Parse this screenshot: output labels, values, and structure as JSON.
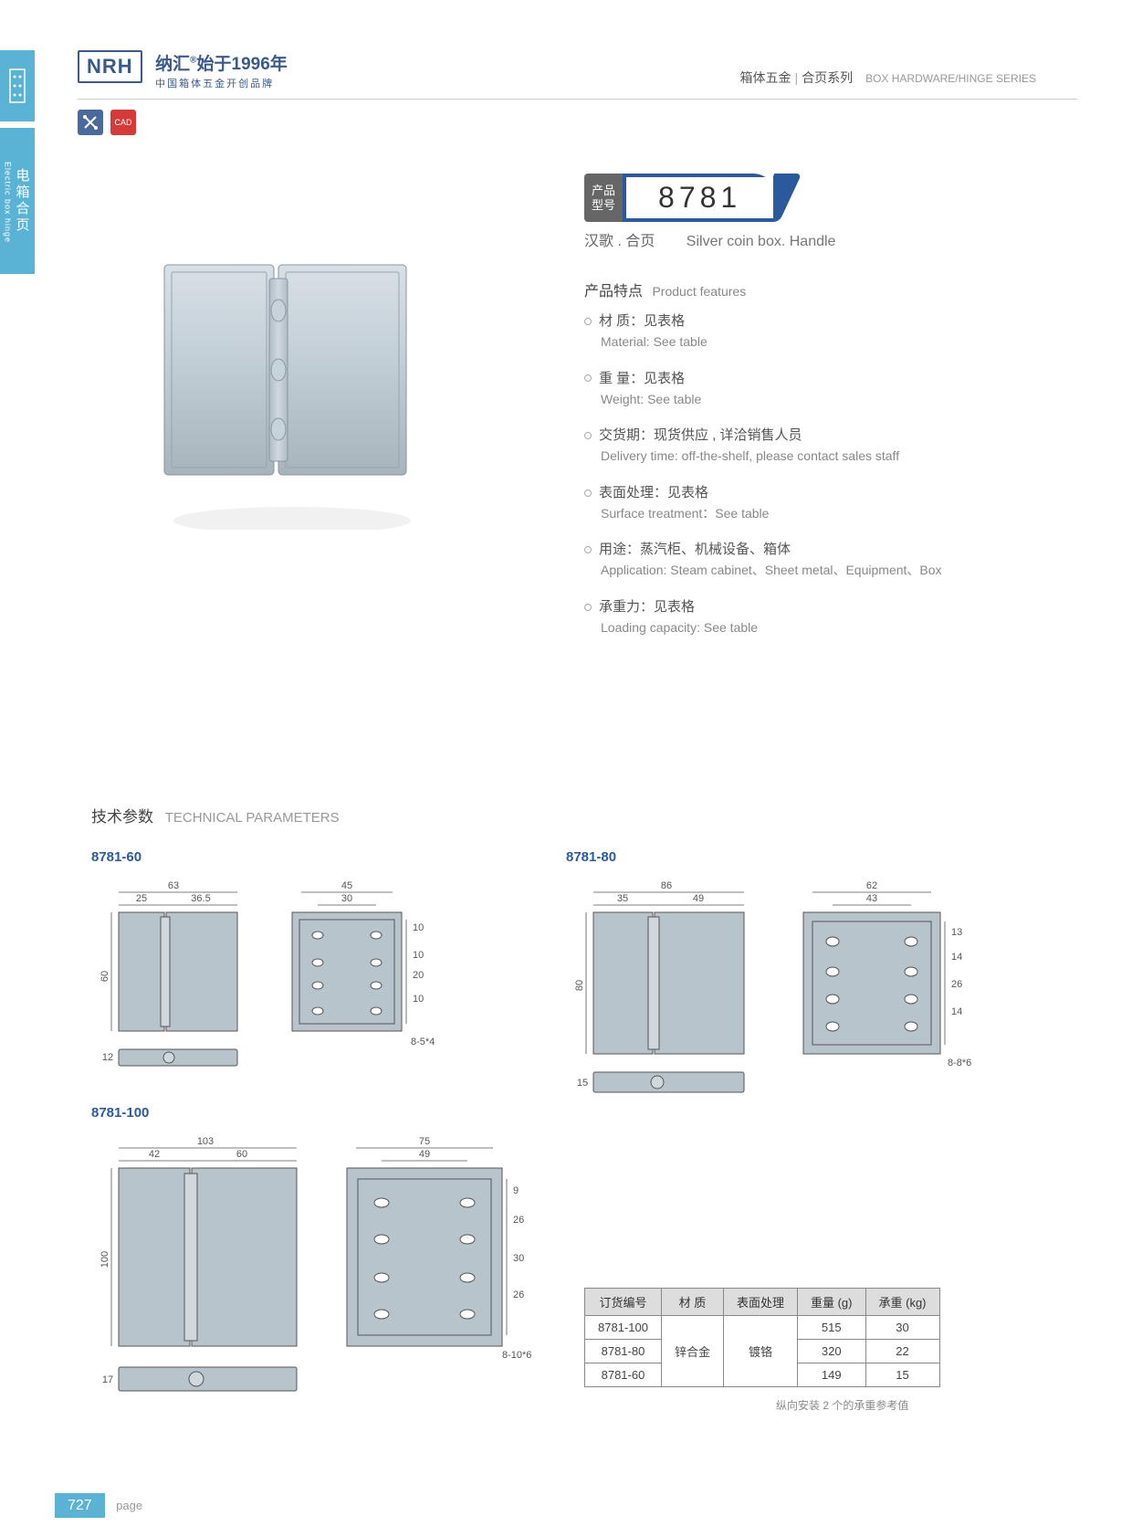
{
  "header": {
    "logo": "NRH",
    "brand_cn": "纳汇",
    "brand_reg": "®",
    "brand_year": "始于1996年",
    "brand_sub": "中国箱体五金开创品牌",
    "right_cn1": "箱体五金",
    "right_cn2": "合页系列",
    "right_en": "BOX HARDWARE/HINGE SERIES"
  },
  "side": {
    "cn": "电箱合页",
    "en": "Electric box hinge"
  },
  "icons": {
    "i1": "✕",
    "i2": "CAD"
  },
  "model": {
    "label1": "产品",
    "label2": "型号",
    "number": "8781"
  },
  "subtitle": {
    "cn": "汉歌 . 合页",
    "en": "Silver coin box. Handle"
  },
  "features": {
    "title_cn": "产品特点",
    "title_en": "Product features",
    "items": [
      {
        "cn": "材 质：见表格",
        "en": "Material: See table"
      },
      {
        "cn": "重 量：见表格",
        "en": "Weight: See table"
      },
      {
        "cn": "交货期：现货供应 , 详洽销售人员",
        "en": "Delivery time: off-the-shelf, please contact sales staff"
      },
      {
        "cn": "表面处理：见表格",
        "en": "Surface treatment：See table"
      },
      {
        "cn": "用途：蒸汽柜、机械设备、箱体",
        "en": "Application: Steam cabinet、Sheet metal、Equipment、Box"
      },
      {
        "cn": "承重力：见表格",
        "en": "Loading capacity: See table"
      }
    ]
  },
  "tech": {
    "title_cn": "技术参数",
    "title_en": "TECHNICAL PARAMETERS"
  },
  "variants": {
    "v1": {
      "label": "8781-60",
      "d": {
        "w1": "63",
        "w2": "25",
        "w3": "36.5",
        "h1": "60",
        "h2": "12",
        "bw": "45",
        "bw2": "30",
        "bs1": "10",
        "bs2": "20",
        "bs3": "10",
        "bs4": "10",
        "hole": "8-5*4"
      }
    },
    "v2": {
      "label": "8781-80",
      "d": {
        "w1": "86",
        "w2": "35",
        "w3": "49",
        "h1": "80",
        "h2": "15",
        "bw": "62",
        "bw2": "43",
        "bs1": "14",
        "bs2": "26",
        "bs3": "14",
        "bs4": "13",
        "hole": "8-8*6"
      }
    },
    "v3": {
      "label": "8781-100",
      "d": {
        "w1": "103",
        "w2": "42",
        "w3": "60",
        "h1": "100",
        "h2": "17",
        "bw": "75",
        "bw2": "49",
        "bs1": "26",
        "bs2": "30",
        "bs3": "26",
        "bs4": "9",
        "hole": "8-10*6"
      }
    }
  },
  "table": {
    "headers": [
      "订货编号",
      "材 质",
      "表面处理",
      "重量 (g)",
      "承重 (kg)"
    ],
    "rows": [
      [
        "8781-100",
        "锌合金",
        "镀铬",
        "515",
        "30"
      ],
      [
        "8781-80",
        "",
        "",
        "320",
        "22"
      ],
      [
        "8781-60",
        "",
        "",
        "149",
        "15"
      ]
    ],
    "note": "纵向安装 2 个的承重参考值"
  },
  "footer": {
    "page": "727",
    "label": "page"
  },
  "colors": {
    "accent": "#5ab3d4",
    "brand": "#3a5a8c",
    "model": "#2a5a9c",
    "hinge": "#b8c4cc",
    "hinge_dark": "#9aa8b0"
  }
}
